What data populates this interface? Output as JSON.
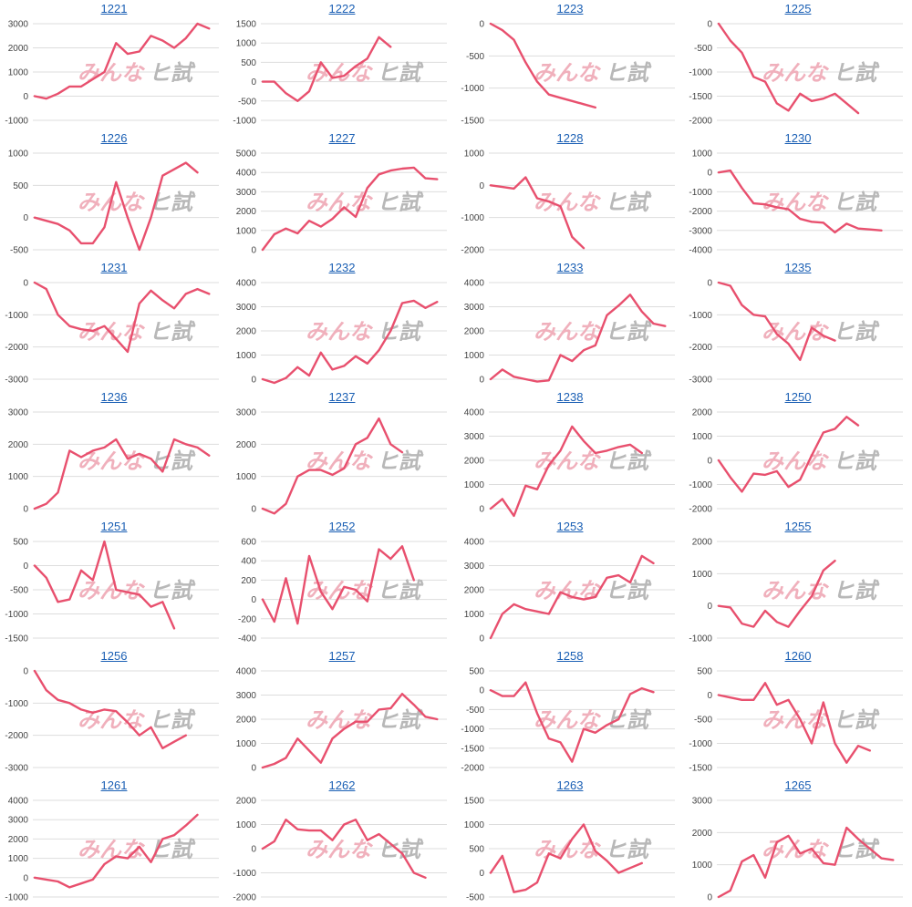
{
  "watermark": [
    "みんな",
    "ヒ試"
  ],
  "line_color": "#e8506e",
  "chart_data": [
    {
      "type": "line",
      "title": "1221",
      "yticks": [
        -1000,
        0,
        1000,
        2000,
        3000
      ],
      "ylim": [
        -1000,
        3000
      ],
      "values": [
        0,
        -100,
        100,
        400,
        400,
        700,
        1000,
        2200,
        1750,
        1850,
        2500,
        2300,
        2000,
        2400,
        3000,
        2800
      ]
    },
    {
      "type": "line",
      "title": "1222",
      "yticks": [
        -1000,
        -500,
        0,
        500,
        1000,
        1500
      ],
      "ylim": [
        -1000,
        1500
      ],
      "values": [
        0,
        0,
        -300,
        -500,
        -250,
        500,
        100,
        150,
        400,
        600,
        1150,
        900
      ]
    },
    {
      "type": "line",
      "title": "1223",
      "yticks": [
        -1500,
        -1000,
        -500,
        0
      ],
      "ylim": [
        -1500,
        0
      ],
      "values": [
        0,
        -100,
        -250,
        -600,
        -900,
        -1100,
        -1150,
        -1200,
        -1250,
        -1300
      ]
    },
    {
      "type": "line",
      "title": "1225",
      "yticks": [
        -2000,
        -1500,
        -1000,
        -500,
        0
      ],
      "ylim": [
        -2000,
        0
      ],
      "values": [
        0,
        -350,
        -600,
        -1100,
        -1200,
        -1650,
        -1800,
        -1450,
        -1600,
        -1550,
        -1450,
        -1650,
        -1850
      ]
    },
    {
      "type": "line",
      "title": "1226",
      "yticks": [
        -500,
        0,
        500,
        1000
      ],
      "ylim": [
        -500,
        1000
      ],
      "values": [
        0,
        -50,
        -100,
        -200,
        -400,
        -400,
        -150,
        550,
        0,
        -500,
        0,
        650,
        750,
        850,
        700
      ]
    },
    {
      "type": "line",
      "title": "1227",
      "yticks": [
        0,
        1000,
        2000,
        3000,
        4000,
        5000
      ],
      "ylim": [
        0,
        5000
      ],
      "values": [
        0,
        800,
        1100,
        850,
        1500,
        1200,
        1600,
        2200,
        1700,
        3200,
        3900,
        4100,
        4200,
        4250,
        3700,
        3650
      ]
    },
    {
      "type": "line",
      "title": "1228",
      "yticks": [
        -2000,
        -1000,
        0,
        1000
      ],
      "ylim": [
        -2000,
        1000
      ],
      "values": [
        0,
        -50,
        -100,
        250,
        -400,
        -500,
        -650,
        -1600,
        -1950
      ]
    },
    {
      "type": "line",
      "title": "1230",
      "yticks": [
        -4000,
        -3000,
        -2000,
        -1000,
        0,
        1000
      ],
      "ylim": [
        -4000,
        1000
      ],
      "values": [
        0,
        100,
        -800,
        -1600,
        -1650,
        -1800,
        -1900,
        -2400,
        -2550,
        -2600,
        -3100,
        -2650,
        -2900,
        -2950,
        -3000
      ]
    },
    {
      "type": "line",
      "title": "1231",
      "yticks": [
        -3000,
        -2000,
        -1000,
        0
      ],
      "ylim": [
        -3000,
        0
      ],
      "values": [
        0,
        -200,
        -1000,
        -1350,
        -1450,
        -1500,
        -1350,
        -1750,
        -2150,
        -650,
        -250,
        -550,
        -800,
        -350,
        -200,
        -350
      ]
    },
    {
      "type": "line",
      "title": "1232",
      "yticks": [
        0,
        1000,
        2000,
        3000,
        4000
      ],
      "ylim": [
        0,
        4000
      ],
      "values": [
        0,
        -150,
        50,
        500,
        150,
        1100,
        400,
        550,
        950,
        650,
        1200,
        2000,
        3150,
        3250,
        2950,
        3200
      ]
    },
    {
      "type": "line",
      "title": "1233",
      "yticks": [
        0,
        1000,
        2000,
        3000,
        4000
      ],
      "ylim": [
        0,
        4000
      ],
      "values": [
        0,
        400,
        100,
        0,
        -100,
        -50,
        1000,
        750,
        1200,
        1400,
        2650,
        3050,
        3500,
        2800,
        2300,
        2200
      ]
    },
    {
      "type": "line",
      "title": "1235",
      "yticks": [
        -3000,
        -2000,
        -1000,
        0
      ],
      "ylim": [
        -3000,
        0
      ],
      "values": [
        0,
        -100,
        -700,
        -1000,
        -1050,
        -1600,
        -1900,
        -2400,
        -1400,
        -1650,
        -1800
      ]
    },
    {
      "type": "line",
      "title": "1236",
      "yticks": [
        0,
        1000,
        2000,
        3000
      ],
      "ylim": [
        0,
        3000
      ],
      "values": [
        0,
        150,
        500,
        1800,
        1600,
        1800,
        1900,
        2150,
        1550,
        1700,
        1550,
        1150,
        2150,
        2000,
        1900,
        1650
      ]
    },
    {
      "type": "line",
      "title": "1237",
      "yticks": [
        0,
        1000,
        2000,
        3000
      ],
      "ylim": [
        0,
        3000
      ],
      "values": [
        0,
        -150,
        150,
        1000,
        1200,
        1200,
        1050,
        1250,
        2000,
        2200,
        2800,
        2000,
        1750
      ]
    },
    {
      "type": "line",
      "title": "1238",
      "yticks": [
        0,
        1000,
        2000,
        3000,
        4000
      ],
      "ylim": [
        0,
        4000
      ],
      "values": [
        0,
        400,
        -300,
        950,
        800,
        1800,
        2400,
        3400,
        2800,
        2300,
        2400,
        2550,
        2650,
        2300
      ]
    },
    {
      "type": "line",
      "title": "1250",
      "yticks": [
        -2000,
        -1000,
        0,
        1000,
        2000
      ],
      "ylim": [
        -2000,
        2000
      ],
      "values": [
        0,
        -700,
        -1300,
        -550,
        -600,
        -450,
        -1100,
        -800,
        200,
        1150,
        1300,
        1800,
        1450
      ]
    },
    {
      "type": "line",
      "title": "1251",
      "yticks": [
        -1500,
        -1000,
        -500,
        0,
        500
      ],
      "ylim": [
        -1500,
        500
      ],
      "values": [
        0,
        -250,
        -750,
        -700,
        -100,
        -300,
        500,
        -500,
        -550,
        -600,
        -850,
        -750,
        -1300
      ]
    },
    {
      "type": "line",
      "title": "1252",
      "yticks": [
        -400,
        -200,
        0,
        200,
        400,
        600
      ],
      "ylim": [
        -400,
        600
      ],
      "values": [
        0,
        -230,
        220,
        -250,
        450,
        80,
        -100,
        130,
        100,
        -20,
        520,
        420,
        550,
        200
      ]
    },
    {
      "type": "line",
      "title": "1253",
      "yticks": [
        0,
        1000,
        2000,
        3000,
        4000
      ],
      "ylim": [
        0,
        4000
      ],
      "values": [
        0,
        1000,
        1400,
        1200,
        1100,
        1000,
        1900,
        1700,
        1600,
        1700,
        2500,
        2600,
        2300,
        3400,
        3100
      ]
    },
    {
      "type": "line",
      "title": "1255",
      "yticks": [
        -1000,
        0,
        1000,
        2000
      ],
      "ylim": [
        -1000,
        2000
      ],
      "values": [
        0,
        -50,
        -550,
        -650,
        -150,
        -500,
        -650,
        -150,
        300,
        1100,
        1400
      ]
    },
    {
      "type": "line",
      "title": "1256",
      "yticks": [
        -3000,
        -2000,
        -1000,
        0
      ],
      "ylim": [
        -3000,
        0
      ],
      "values": [
        0,
        -600,
        -900,
        -1000,
        -1200,
        -1300,
        -1200,
        -1250,
        -1600,
        -2000,
        -1750,
        -2400,
        -2200,
        -2000
      ]
    },
    {
      "type": "line",
      "title": "1257",
      "yticks": [
        0,
        1000,
        2000,
        3000,
        4000
      ],
      "ylim": [
        0,
        4000
      ],
      "values": [
        0,
        150,
        400,
        1200,
        700,
        200,
        1200,
        1600,
        1900,
        1900,
        2400,
        2450,
        3050,
        2600,
        2100,
        2000
      ]
    },
    {
      "type": "line",
      "title": "1258",
      "yticks": [
        -2000,
        -1500,
        -1000,
        -500,
        0,
        500
      ],
      "ylim": [
        -2000,
        500
      ],
      "values": [
        0,
        -150,
        -150,
        200,
        -600,
        -1250,
        -1350,
        -1850,
        -1000,
        -1100,
        -900,
        -750,
        -100,
        50,
        -50
      ]
    },
    {
      "type": "line",
      "title": "1260",
      "yticks": [
        -1500,
        -1000,
        -500,
        0,
        500
      ],
      "ylim": [
        -1500,
        500
      ],
      "values": [
        0,
        -50,
        -100,
        -100,
        250,
        -200,
        -100,
        -500,
        -1000,
        -150,
        -1000,
        -1400,
        -1050,
        -1150
      ]
    },
    {
      "type": "line",
      "title": "1261",
      "yticks": [
        -1000,
        0,
        1000,
        2000,
        3000,
        4000
      ],
      "ylim": [
        -1000,
        4000
      ],
      "values": [
        0,
        -100,
        -200,
        -500,
        -300,
        -100,
        700,
        1100,
        1000,
        1600,
        800,
        2000,
        2200,
        2700,
        3250
      ]
    },
    {
      "type": "line",
      "title": "1262",
      "yticks": [
        -2000,
        -1000,
        0,
        1000,
        2000
      ],
      "ylim": [
        -2000,
        2000
      ],
      "values": [
        0,
        300,
        1200,
        800,
        750,
        750,
        350,
        1000,
        1200,
        350,
        600,
        200,
        -200,
        -1000,
        -1200
      ]
    },
    {
      "type": "line",
      "title": "1263",
      "yticks": [
        -500,
        0,
        500,
        1000,
        1500
      ],
      "ylim": [
        -500,
        1500
      ],
      "values": [
        0,
        350,
        -400,
        -350,
        -200,
        400,
        300,
        700,
        1000,
        450,
        250,
        0,
        100,
        200
      ]
    },
    {
      "type": "line",
      "title": "1265",
      "yticks": [
        0,
        1000,
        2000,
        3000
      ],
      "ylim": [
        0,
        3000
      ],
      "values": [
        0,
        200,
        1100,
        1300,
        600,
        1700,
        1900,
        1350,
        1500,
        1050,
        1000,
        2150,
        1800,
        1500,
        1200,
        1150
      ]
    }
  ]
}
